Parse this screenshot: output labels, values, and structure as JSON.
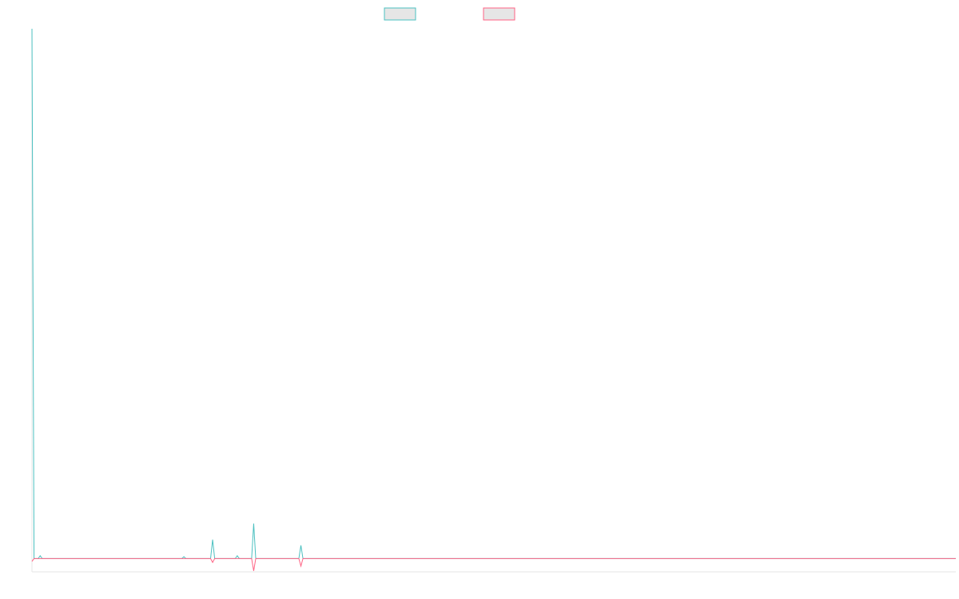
{
  "chart_data": {
    "type": "line",
    "title": "",
    "xlabel": "",
    "ylabel": "",
    "grid": false,
    "legend_position": "top-center",
    "n_points": 451,
    "ylim": [
      -1.4,
      56
    ],
    "series": [
      {
        "color": "#4bc0c0",
        "fill": "#e6e6e6",
        "baseline": 0,
        "values_sparse": [
          [
            0,
            56
          ],
          [
            1,
            0
          ],
          [
            4,
            0.3
          ],
          [
            74,
            0.2
          ],
          [
            88,
            2
          ],
          [
            100,
            0.3
          ],
          [
            108,
            3.7
          ],
          [
            131,
            1.4
          ]
        ]
      },
      {
        "color": "#ff6384",
        "fill": "#e6e6e6",
        "baseline": 0,
        "values_sparse": [
          [
            0,
            -0.3
          ],
          [
            1,
            0
          ],
          [
            88,
            -0.4
          ],
          [
            108,
            -1.3
          ],
          [
            131,
            -0.8
          ]
        ]
      }
    ]
  }
}
